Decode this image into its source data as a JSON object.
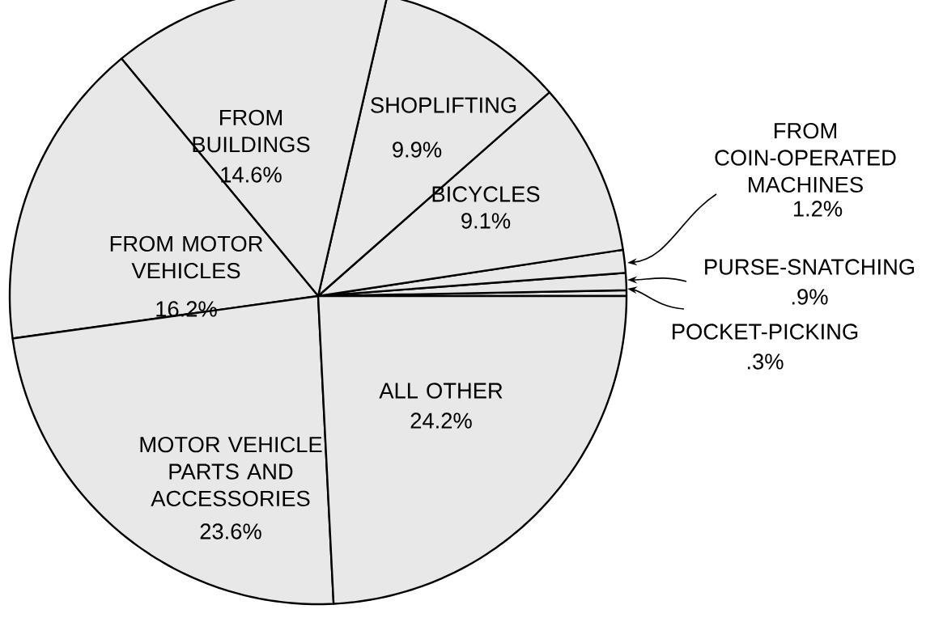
{
  "chart_data": {
    "type": "pie",
    "categories": [
      "POCKET-PICKING",
      "PURSE-SNATCHING",
      "FROM COIN-OPERATED MACHINES",
      "BICYCLES",
      "SHOPLIFTING",
      "FROM BUILDINGS",
      "FROM MOTOR VEHICLES",
      "MOTOR VEHICLE PARTS AND ACCESSORIES",
      "ALL OTHER"
    ],
    "values": [
      0.3,
      0.9,
      1.2,
      9.1,
      9.9,
      14.6,
      16.2,
      23.6,
      24.2
    ],
    "value_labels": [
      ".3%",
      ".9%",
      "1.2%",
      "9.1%",
      "9.9%",
      "14.6%",
      "16.2%",
      "23.6%",
      "24.2%"
    ],
    "colors": [
      "#e8e8e8",
      "#e8e8e8",
      "#e8e8e8",
      "#e8e8e8",
      "#e8e8e8",
      "#e8e8e8",
      "#e8e8e8",
      "#e8e8e8",
      "#e8e8e8"
    ]
  }
}
